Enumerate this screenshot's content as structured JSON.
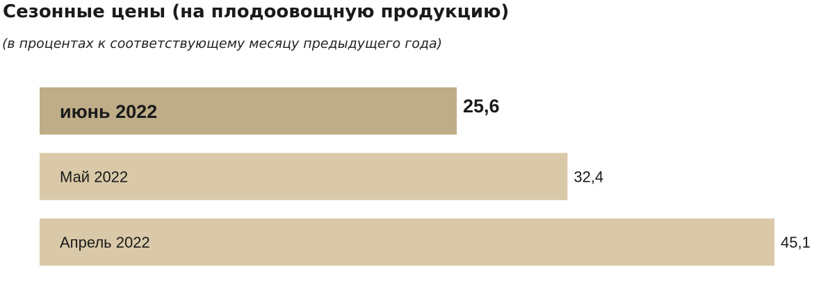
{
  "chart_data": {
    "type": "bar",
    "orientation": "horizontal",
    "title": "Сезонные цены (на плодоовощную продукцию)",
    "subtitle": "(в процентах к соответствующему месяцу предыдущего года)",
    "categories": [
      "июнь 2022",
      "Май 2022",
      "Апрель 2022"
    ],
    "values": [
      25.6,
      32.4,
      45.1
    ],
    "value_labels": [
      "25,6",
      "32,4",
      "45,1"
    ],
    "highlighted_index": 0,
    "colors": {
      "highlight": "#bfad88",
      "default": "#d9c9a8",
      "text": "#1a1a1a"
    },
    "xlim": [
      0,
      45.1
    ],
    "grid": false,
    "legend": "none"
  }
}
